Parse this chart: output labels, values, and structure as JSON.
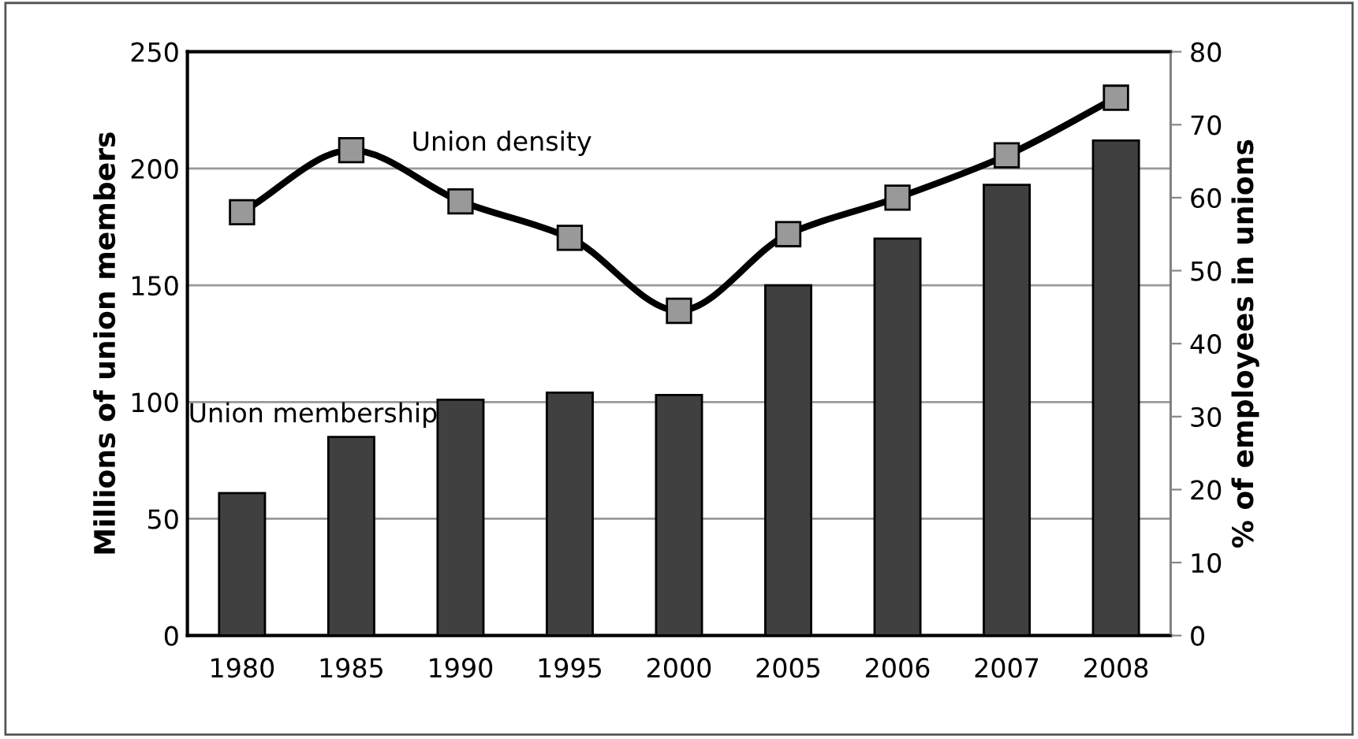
{
  "chart_data": {
    "type": "bar",
    "ylabel": "Millions of union members",
    "y2label": "% of employees in unions",
    "categories": [
      "1980",
      "1985",
      "1990",
      "1995",
      "2000",
      "2005",
      "2006",
      "2007",
      "2008"
    ],
    "series": [
      {
        "name": "Union membership",
        "color": "#404040",
        "values": [
          61,
          85,
          101,
          104,
          103,
          150,
          170,
          193,
          212
        ]
      },
      {
        "name": "Union density",
        "type": "line",
        "axis": "y2",
        "color": "#000000",
        "marker": "square",
        "values": [
          58,
          66.5,
          59.5,
          54.5,
          44.5,
          55,
          60,
          65.8,
          73.7
        ]
      }
    ],
    "ylim": [
      0,
      250
    ],
    "yticks": [
      0,
      50,
      100,
      150,
      200,
      250
    ],
    "y2lim": [
      0,
      80
    ],
    "y2ticks": [
      0,
      10,
      20,
      30,
      40,
      50,
      60,
      70,
      80
    ],
    "grid": "y",
    "legend": false
  }
}
